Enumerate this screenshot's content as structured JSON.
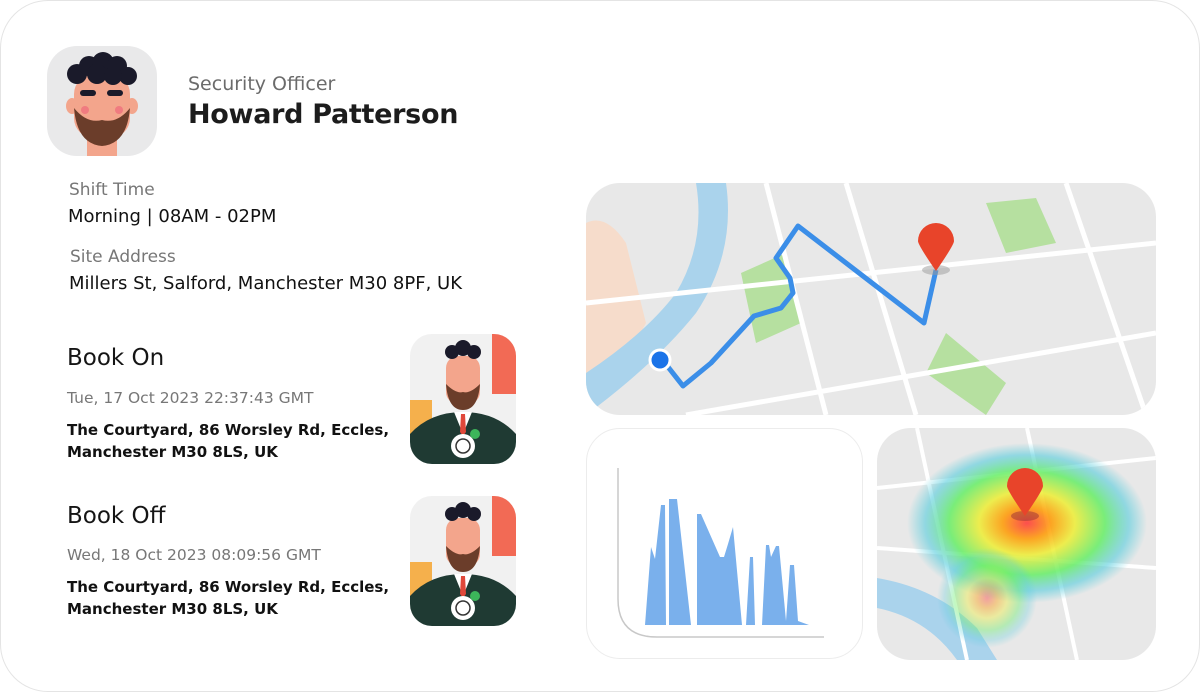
{
  "profile": {
    "role": "Security Officer",
    "name": "Howard Patterson",
    "avatar_icon": "bearded-man-avatar"
  },
  "shift": {
    "label": "Shift Time",
    "value": "Morning |  08AM - 02PM"
  },
  "site": {
    "label": "Site Address",
    "value": "Millers St, Salford, Manchester M30 8PF, UK"
  },
  "book_on": {
    "title": "Book On",
    "timestamp": "Tue, 17 Oct 2023 22:37:43 GMT",
    "address_line1": "The Courtyard, 86 Worsley Rd, Eccles,",
    "address_line2": "Manchester M30 8LS, UK"
  },
  "book_off": {
    "title": "Book Off",
    "timestamp": "Wed, 18 Oct 2023 08:09:56 GMT",
    "address_line1": "The Courtyard, 86 Worsley Rd, Eccles,",
    "address_line2": "Manchester M30 8LS, UK"
  },
  "colors": {
    "route": "#3b8ee8",
    "pin": "#e8442a",
    "chart_fill": "#7ab0ec",
    "map_bg": "#e8e8e8",
    "water": "#aad3ec",
    "park": "#b6e0a0"
  }
}
